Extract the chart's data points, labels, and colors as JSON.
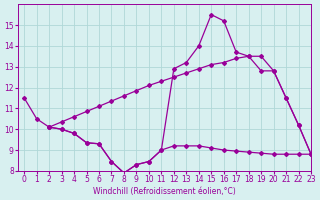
{
  "line1_x": [
    0,
    1,
    2,
    3,
    4,
    5,
    6,
    7,
    8,
    9,
    10,
    11,
    12,
    13,
    14,
    15,
    16,
    17,
    18,
    19,
    20,
    21,
    22,
    23
  ],
  "line1_y": [
    11.5,
    10.5,
    10.1,
    10.0,
    9.8,
    9.35,
    9.3,
    8.45,
    7.9,
    8.3,
    8.45,
    9.0,
    12.9,
    13.2,
    14.0,
    15.5,
    15.2,
    13.7,
    13.5,
    12.8,
    12.8,
    11.5,
    10.2,
    8.8
  ],
  "line2_x": [
    2,
    3,
    4,
    5,
    6,
    7,
    8,
    9,
    10,
    11,
    12,
    13,
    14,
    15,
    16,
    17,
    18,
    19,
    20,
    21,
    22,
    23
  ],
  "line2_y": [
    10.1,
    10.35,
    10.6,
    10.85,
    11.1,
    11.35,
    11.6,
    11.85,
    12.1,
    12.3,
    12.5,
    12.7,
    12.9,
    13.1,
    13.2,
    13.4,
    13.5,
    13.5,
    12.8,
    11.5,
    10.2,
    8.8
  ],
  "line3_x": [
    2,
    3,
    4,
    5,
    6,
    7,
    8,
    9,
    10,
    11,
    12,
    13,
    14,
    15,
    16,
    17,
    18,
    19,
    20,
    21,
    22,
    23
  ],
  "line3_y": [
    10.1,
    10.0,
    9.8,
    9.35,
    9.3,
    8.45,
    7.9,
    8.3,
    8.45,
    9.0,
    9.2,
    9.2,
    9.2,
    9.1,
    9.0,
    8.95,
    8.9,
    8.85,
    8.8,
    8.8,
    8.8,
    8.8
  ],
  "color": "#990099",
  "bg_color": "#d8f0f0",
  "grid_color": "#b0d8d8",
  "xlabel": "Windchill (Refroidissement éolien,°C)",
  "xlim": [
    -0.5,
    23
  ],
  "ylim": [
    8,
    16
  ],
  "yticks": [
    8,
    9,
    10,
    11,
    12,
    13,
    14,
    15
  ],
  "xticks": [
    0,
    1,
    2,
    3,
    4,
    5,
    6,
    7,
    8,
    9,
    10,
    11,
    12,
    13,
    14,
    15,
    16,
    17,
    18,
    19,
    20,
    21,
    22,
    23
  ]
}
